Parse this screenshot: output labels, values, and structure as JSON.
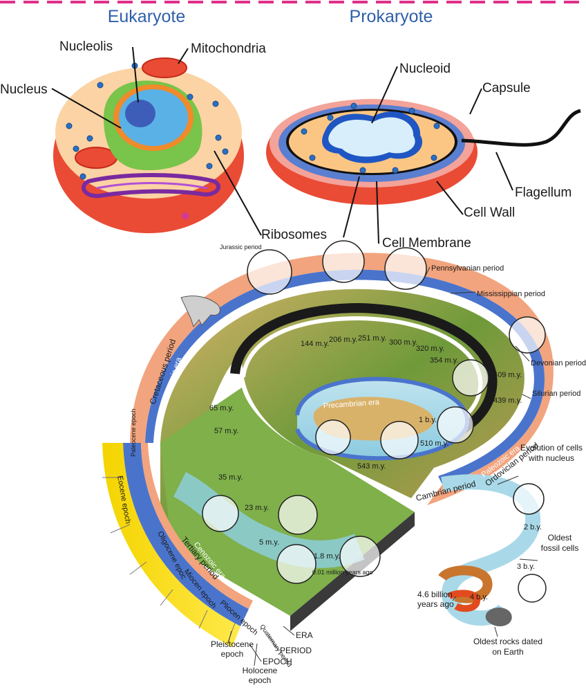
{
  "cell": {
    "eukaryote_title": "Eukaryote",
    "prokaryote_title": "Prokaryote",
    "labels": {
      "nucleolis": "Nucleolis",
      "mitochondria": "Mitochondria",
      "nucleus": "Nucleus",
      "ribosomes": "Ribosomes",
      "nucleoid": "Nucleoid",
      "capsule": "Capsule",
      "flagellum": "Flagellum",
      "cell_wall": "Cell Wall",
      "cell_membrane": "Cell Membrane"
    }
  },
  "timeline": {
    "periods": {
      "jurassic": "Jurassic period",
      "pennsylvanian": "Pennsylvanian period",
      "mississippian": "Mississippian period",
      "devonian": "Devonian period",
      "silurian": "Silurian period",
      "ordovician": "Ordovician period",
      "cambrian": "Cambrian period",
      "cretaceous": "Cretaceous period",
      "tertiary": "Tertiary period",
      "quaternary": "Quaternary period"
    },
    "eras": {
      "mesozoic": "Mesozoic era",
      "paleozoic": "Paleozoic era",
      "cenozoic": "Cenozoic era",
      "precambrian": "Precambrian era"
    },
    "epochs": {
      "paleocene": "Paleocene epoch",
      "eocene": "Eocene epoch",
      "oligocene": "Oligocene epoc",
      "miocene": "Miocen epoch",
      "pliocene": "Pliocen epoch",
      "pleistocene": "Pleistocene epoch",
      "holocene": "Holocene epoch"
    },
    "ages": {
      "my144": "144 m.y.",
      "my206": "206 m.y.",
      "my251": "251 m.y.",
      "my300": "300 m.y.",
      "my320": "320 m.y.",
      "my354": "354 m.y.",
      "my409": "409 m.y.",
      "my439": "439 m.y.",
      "my65": "65 m.y.",
      "my57": "57 m.y.",
      "my35": "35 m.y.",
      "my23": "23 m.y.",
      "my5": "5 m.y.",
      "my1_8": "1.8 m.y.",
      "my001": "0.01 million years ago",
      "by1": "1 b.y.",
      "my510": "510 m.y.",
      "my543": "543 m.y.",
      "by2": "2 b.y.",
      "by3": "3 b.y.",
      "by4": "4 b.y.",
      "billion46": "4.6 billion years ago"
    },
    "events": {
      "evolution_nucleus": "Evolution of cells with nucleus",
      "oldest_fossil": "Oldest fossil cells",
      "oldest_rocks": "Oldest rocks dated on Earth"
    },
    "legend": {
      "era": "ERA",
      "period": "PERIOD",
      "epoch": "EPOCH"
    }
  }
}
